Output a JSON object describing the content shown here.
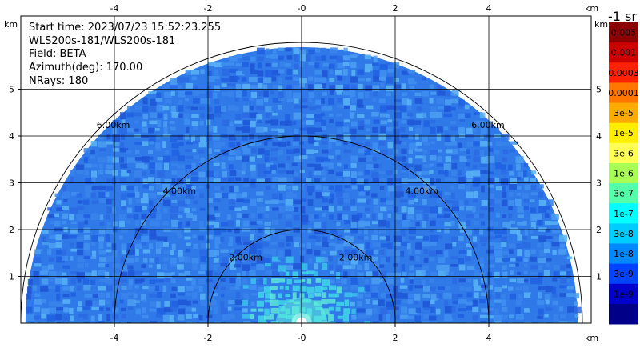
{
  "info": {
    "start_time": "Start time: 2023/07/23 15:52:23.255",
    "instrument": "WLS200s-181/WLS200s-181",
    "field": "Field: BETA",
    "azimuth": "Azimuth(deg): 170.00",
    "nrays": "NRays: 180"
  },
  "chart_data": {
    "type": "heatmap",
    "title": "",
    "xlabel": "km",
    "ylabel": "km",
    "xlim": [
      -6.0,
      6.0
    ],
    "ylim": [
      0,
      6.0
    ],
    "x_ticks": [
      -4,
      -2,
      0,
      2,
      4
    ],
    "y_ticks": [
      1,
      2,
      3,
      4,
      5
    ],
    "x_tick_labels": [
      "-4",
      "-2",
      "-0",
      "2",
      "4"
    ],
    "y_tick_labels": [
      "1",
      "2",
      "3",
      "4",
      "5"
    ],
    "range_rings_km": [
      2.0,
      4.0,
      6.0
    ],
    "range_ring_labels": [
      "2.00km",
      "4.00km",
      "6.00km"
    ],
    "grid": true,
    "max_range_km": 5.9,
    "colorbar": {
      "title": "-1 sr",
      "labels": [
        "0.005",
        "0.001",
        "0.0003",
        "0.0001",
        "3e-5",
        "1e-5",
        "3e-6",
        "1e-6",
        "3e-7",
        "1e-7",
        "3e-8",
        "1e-8",
        "3e-9",
        "1e-9"
      ],
      "colors": [
        "#8b0000",
        "#cc0000",
        "#ff2200",
        "#ff7700",
        "#ffaa00",
        "#ffee00",
        "#ffff55",
        "#aaff55",
        "#55ffaa",
        "#00ffff",
        "#00ccff",
        "#0088ff",
        "#0044ff",
        "#0000cc",
        "#000088"
      ]
    }
  }
}
